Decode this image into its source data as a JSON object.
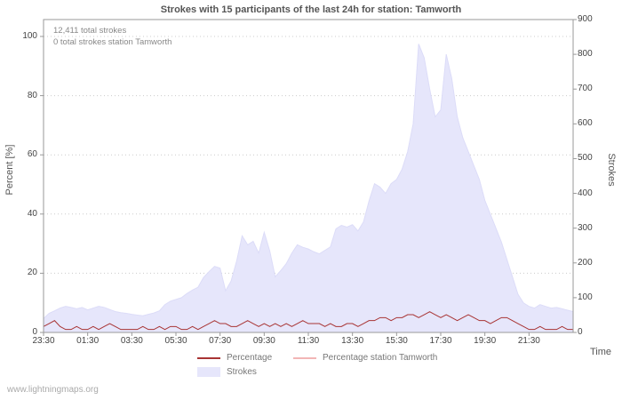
{
  "footer": "www.lightningmaps.org",
  "chart_data": {
    "type": "area",
    "title": "Strokes with 15 participants of the last 24h for station: Tamworth",
    "annotations": [
      "12,411 total strokes",
      "0 total strokes station Tamworth"
    ],
    "x_label": "Time",
    "x_tick_labels": [
      "23:30",
      "01:30",
      "03:30",
      "05:30",
      "07:30",
      "09:30",
      "11:30",
      "13:30",
      "15:30",
      "17:30",
      "19:30",
      "21:30"
    ],
    "x_hours_span": 24,
    "grid": "horizontal-dashed",
    "legend_position": "bottom",
    "left_axis": {
      "label": "Percent [%]",
      "ticks": [
        0,
        20,
        40,
        60,
        80,
        100
      ],
      "range": [
        0,
        100
      ]
    },
    "right_axis": {
      "label": "Strokes",
      "ticks": [
        0,
        100,
        200,
        300,
        400,
        500,
        600,
        700,
        800,
        900
      ],
      "range": [
        0,
        900
      ]
    },
    "series": [
      {
        "name": "Strokes",
        "type": "area",
        "axis": "right",
        "color": "#e6e6fb",
        "edge_color": "#dcdcf8",
        "values": [
          40,
          55,
          62,
          70,
          75,
          72,
          68,
          72,
          65,
          70,
          75,
          72,
          66,
          60,
          57,
          55,
          52,
          50,
          48,
          52,
          56,
          62,
          80,
          90,
          95,
          100,
          112,
          122,
          130,
          158,
          175,
          190,
          185,
          120,
          148,
          205,
          278,
          252,
          262,
          228,
          288,
          235,
          160,
          178,
          198,
          228,
          252,
          245,
          240,
          232,
          226,
          236,
          246,
          298,
          308,
          303,
          310,
          292,
          318,
          378,
          428,
          418,
          400,
          428,
          440,
          470,
          520,
          600,
          830,
          790,
          700,
          620,
          640,
          800,
          730,
          620,
          560,
          520,
          480,
          440,
          380,
          340,
          300,
          260,
          210,
          160,
          110,
          85,
          75,
          70,
          80,
          75,
          70,
          72,
          68,
          64,
          60
        ]
      },
      {
        "name": "Percentage",
        "type": "line",
        "axis": "left",
        "color": "#a83434",
        "values": [
          2,
          3,
          4,
          2,
          1,
          1,
          2,
          1,
          1,
          2,
          1,
          2,
          3,
          2,
          1,
          1,
          1,
          1,
          2,
          1,
          1,
          2,
          1,
          2,
          2,
          1,
          1,
          2,
          1,
          2,
          3,
          4,
          3,
          3,
          2,
          2,
          3,
          4,
          3,
          2,
          3,
          2,
          3,
          2,
          3,
          2,
          3,
          4,
          3,
          3,
          3,
          2,
          3,
          2,
          2,
          3,
          3,
          2,
          3,
          4,
          4,
          5,
          5,
          4,
          5,
          5,
          6,
          6,
          5,
          6,
          7,
          6,
          5,
          6,
          5,
          4,
          5,
          6,
          5,
          4,
          4,
          3,
          4,
          5,
          5,
          4,
          3,
          2,
          1,
          1,
          2,
          1,
          1,
          1,
          2,
          1,
          1
        ]
      },
      {
        "name": "Percentage station Tamworth",
        "type": "line",
        "axis": "left",
        "color": "#f2b6b6",
        "values": [
          0,
          0,
          0,
          0,
          0,
          0,
          0,
          0,
          0,
          0,
          0,
          0,
          0,
          0,
          0,
          0,
          0,
          0,
          0,
          0,
          0,
          0,
          0,
          0,
          0,
          0,
          0,
          0,
          0,
          0,
          0,
          0,
          0,
          0,
          0,
          0,
          0,
          0,
          0,
          0,
          0,
          0,
          0,
          0,
          0,
          0,
          0,
          0,
          0,
          0,
          0,
          0,
          0,
          0,
          0,
          0,
          0,
          0,
          0,
          0,
          0,
          0,
          0,
          0,
          0,
          0,
          0,
          0,
          0,
          0,
          0,
          0,
          0,
          0,
          0,
          0,
          0,
          0,
          0,
          0,
          0,
          0,
          0,
          0,
          0,
          0,
          0,
          0,
          0,
          0,
          0,
          0,
          0,
          0,
          0,
          0,
          0
        ]
      }
    ]
  }
}
